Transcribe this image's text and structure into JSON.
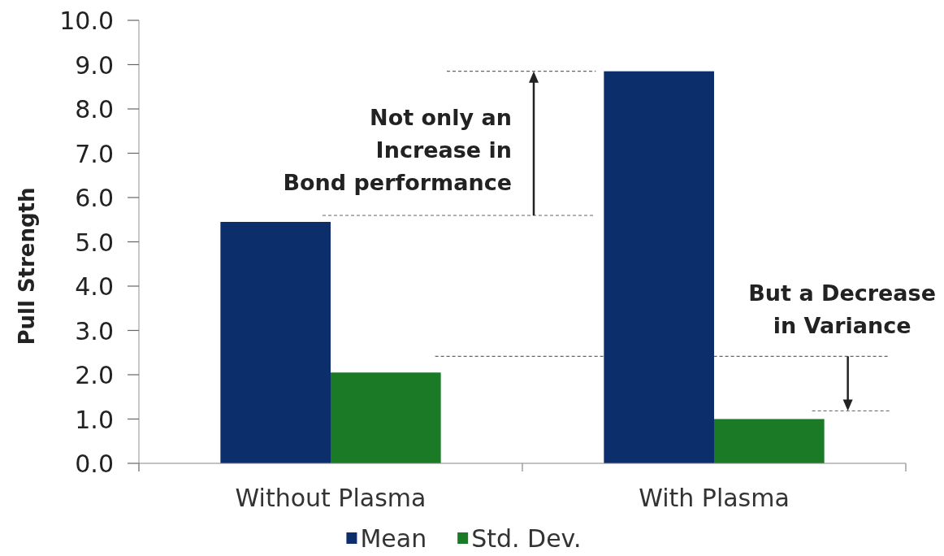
{
  "chart_data": {
    "type": "bar",
    "categories": [
      "Without Plasma",
      "With Plasma"
    ],
    "series": [
      {
        "name": "Mean",
        "color": "#0c2f6b",
        "values": [
          5.45,
          8.85
        ]
      },
      {
        "name": "Std. Dev.",
        "color": "#1b7a26",
        "values": [
          2.05,
          1.0
        ]
      }
    ],
    "ylabel": "Pull Strength",
    "ylim": [
      0,
      10
    ],
    "yticks": [
      {
        "value": 0,
        "label": "0.0"
      },
      {
        "value": 1,
        "label": "1.0"
      },
      {
        "value": 2,
        "label": "2.0"
      },
      {
        "value": 3,
        "label": "3.0"
      },
      {
        "value": 4,
        "label": "4.0"
      },
      {
        "value": 5,
        "label": "5.0"
      },
      {
        "value": 6,
        "label": "6.0"
      },
      {
        "value": 7,
        "label": "7.0"
      },
      {
        "value": 8,
        "label": "8.0"
      },
      {
        "value": 9,
        "label": "9.0"
      },
      {
        "value": 10,
        "label": "10.0"
      }
    ],
    "grid": false,
    "legend": "bottom",
    "annotations": [
      "Not only an\nIncrease in\nBond performance",
      "But a Decrease\nin Variance"
    ]
  }
}
